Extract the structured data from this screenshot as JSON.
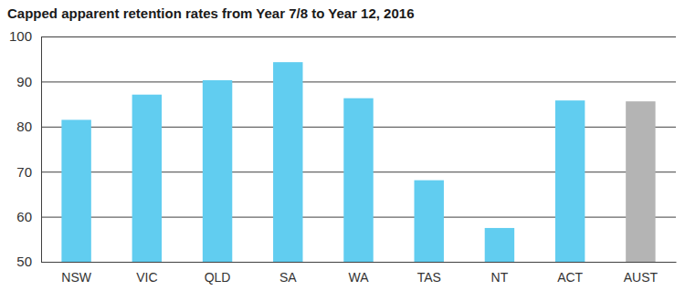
{
  "chart_data": {
    "type": "bar",
    "title": "Capped apparent retention rates from Year 7/8 to Year 12, 2016",
    "categories": [
      "NSW",
      "VIC",
      "QLD",
      "SA",
      "WA",
      "TAS",
      "NT",
      "ACT",
      "AUST"
    ],
    "values": [
      81.5,
      87.1,
      90.3,
      94.3,
      86.3,
      68.1,
      57.5,
      85.8,
      85.6
    ],
    "colors": [
      "#61cdf0",
      "#61cdf0",
      "#61cdf0",
      "#61cdf0",
      "#61cdf0",
      "#61cdf0",
      "#61cdf0",
      "#61cdf0",
      "#b4b4b4"
    ],
    "ylim": [
      50,
      100
    ],
    "yticks": [
      50,
      60,
      70,
      80,
      90,
      100
    ],
    "grid": true
  }
}
